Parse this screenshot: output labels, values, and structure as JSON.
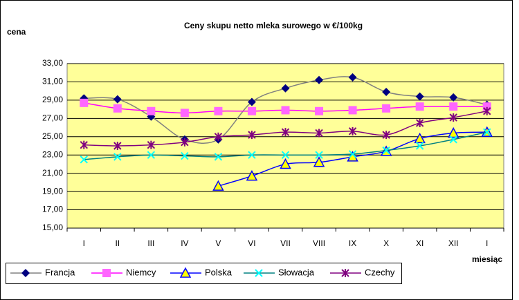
{
  "chart_data": {
    "type": "line",
    "title": "Ceny skupu netto mleka surowego  w €/100kg",
    "y_label": "cena",
    "x_label": "miesiąc",
    "categories": [
      "I",
      "II",
      "III",
      "IV",
      "V",
      "VI",
      "VII",
      "VIII",
      "IX",
      "X",
      "XI",
      "XII",
      "I"
    ],
    "ylim": [
      15,
      33
    ],
    "yticks": [
      {
        "value": 15,
        "label": "15,00"
      },
      {
        "value": 17,
        "label": "17,00"
      },
      {
        "value": 19,
        "label": "19,00"
      },
      {
        "value": 21,
        "label": "21,00"
      },
      {
        "value": 23,
        "label": "23,00"
      },
      {
        "value": 25,
        "label": "25,00"
      },
      {
        "value": 27,
        "label": "27,00"
      },
      {
        "value": 29,
        "label": "29,00"
      },
      {
        "value": 31,
        "label": "31,00"
      },
      {
        "value": 33,
        "label": "33,00"
      }
    ],
    "grid": true,
    "background": "#ffff99",
    "legend": "bottom",
    "series": [
      {
        "name": "Francja",
        "color": "#808080",
        "marker_color": "#000080",
        "marker": "diamond",
        "values": [
          29.2,
          29.1,
          27.2,
          24.7,
          24.7,
          28.8,
          30.3,
          31.2,
          31.5,
          29.9,
          29.4,
          29.3,
          28.5
        ]
      },
      {
        "name": "Niemcy",
        "color": "#ff00ff",
        "marker_color": "#ff66ff",
        "marker": "square",
        "values": [
          28.7,
          28.1,
          27.8,
          27.6,
          27.8,
          27.8,
          27.9,
          27.8,
          27.9,
          28.1,
          28.3,
          28.3,
          28.3
        ]
      },
      {
        "name": "Polska",
        "color": "#0000ff",
        "marker_color": "#ffff00",
        "marker": "triangle",
        "values": [
          null,
          null,
          null,
          null,
          19.6,
          20.7,
          22.0,
          22.2,
          22.8,
          23.4,
          24.8,
          25.4,
          25.5
        ]
      },
      {
        "name": "Słowacja",
        "color": "#008080",
        "marker_color": "#00ffff",
        "marker": "xstar",
        "values": [
          22.5,
          22.8,
          23.0,
          22.9,
          22.8,
          23.0,
          23.0,
          23.0,
          23.1,
          23.5,
          24.0,
          24.7,
          25.5
        ]
      },
      {
        "name": "Czechy",
        "color": "#800080",
        "marker_color": "#800080",
        "marker": "star",
        "values": [
          24.1,
          24.0,
          24.1,
          24.4,
          25.0,
          25.2,
          25.5,
          25.4,
          25.6,
          25.2,
          26.5,
          27.1,
          27.8
        ]
      }
    ]
  }
}
